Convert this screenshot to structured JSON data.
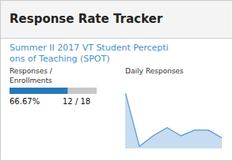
{
  "chart_data": [
    {
      "type": "progress",
      "title": "Response Rate Tracker",
      "subtitle": [
        "Summer II 2017 VT Student Percepti",
        "ons of Teaching (SPOT)"
      ],
      "xlabel": [
        "Responses /",
        "Enrollments"
      ],
      "values": [
        0.6667
      ],
      "value_labels": [
        "66.67%"
      ],
      "annotations": [
        "12 / 18"
      ],
      "xlim": [
        0,
        1
      ],
      "orientation": "horizontal",
      "data_labels": true,
      "tick_labels": false,
      "color": "#2878B8"
    },
    {
      "type": "area",
      "title": "Daily Responses",
      "values": [
        8,
        1.5,
        2.8,
        3.8,
        2.8,
        3.5,
        3.5,
        2.5
      ],
      "ylim": [
        1.2,
        8.4
      ],
      "tick_labels": false,
      "color": "#5B9BD5"
    }
  ]
}
